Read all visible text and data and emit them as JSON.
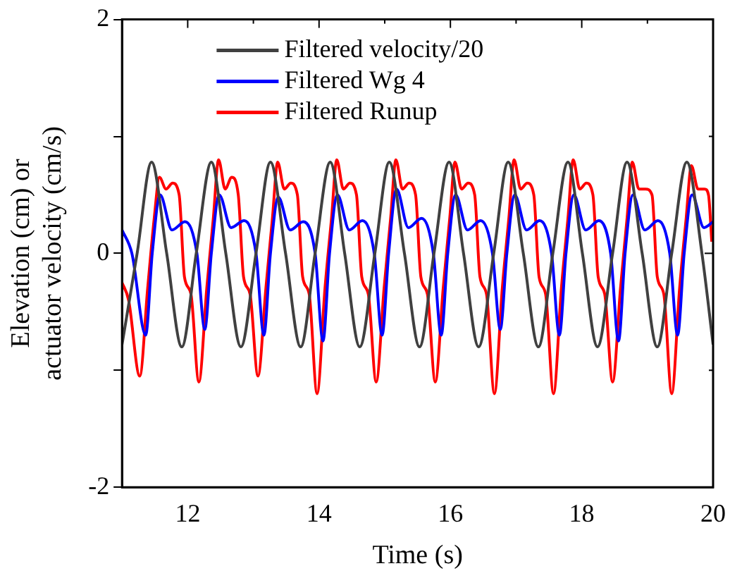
{
  "chart_data": {
    "type": "line",
    "xlabel": "Time (s)",
    "ylabel": "Elevation (cm) or\nactuator velocity (cm/s)",
    "xlim": [
      11,
      20
    ],
    "xticks": [
      {
        "value": 11,
        "label": null
      },
      12,
      {
        "value": 13,
        "label": null
      },
      14,
      {
        "value": 15,
        "label": null
      },
      16,
      {
        "value": 17,
        "label": null
      },
      18,
      {
        "value": 19,
        "label": null
      },
      20
    ],
    "ylim": [
      -2,
      2
    ],
    "yticks": [
      -2,
      {
        "value": -1,
        "label": null
      },
      0,
      {
        "value": 1,
        "label": null
      },
      2
    ],
    "grid": false,
    "legend": "top",
    "marker": "none",
    "line_style": "solid",
    "series": [
      {
        "name": "Filtered velocity/20",
        "color": "#404040",
        "x": [
          11.0,
          11.23,
          11.45,
          11.68,
          11.91,
          12.13,
          12.36,
          12.58,
          12.81,
          13.04,
          13.26,
          13.49,
          13.72,
          13.94,
          14.17,
          14.39,
          14.62,
          14.85,
          15.07,
          15.3,
          15.53,
          15.75,
          15.98,
          16.2,
          16.43,
          16.66,
          16.88,
          17.11,
          17.34,
          17.56,
          17.79,
          18.01,
          18.24,
          18.47,
          18.69,
          18.92,
          19.15,
          19.37,
          19.6,
          19.83,
          20.0
        ],
        "values": [
          -0.78,
          0,
          0.78,
          0,
          -0.8,
          0,
          0.78,
          0,
          -0.8,
          0,
          0.78,
          0,
          -0.8,
          0,
          0.78,
          0,
          -0.8,
          0,
          0.78,
          0,
          -0.8,
          0,
          0.78,
          0,
          -0.8,
          0,
          0.78,
          0,
          -0.8,
          0,
          0.78,
          0,
          -0.8,
          0,
          0.78,
          0,
          -0.8,
          0,
          0.78,
          0,
          -0.78
        ]
      },
      {
        "name": "Filtered Wg 4",
        "color": "#0000ff",
        "x": [
          11.0,
          11.15,
          11.36,
          11.46,
          11.58,
          11.76,
          11.96,
          12.14,
          12.26,
          12.36,
          12.48,
          12.66,
          12.86,
          13.04,
          13.16,
          13.26,
          13.38,
          13.56,
          13.76,
          13.94,
          14.06,
          14.16,
          14.28,
          14.46,
          14.66,
          14.84,
          14.96,
          15.06,
          15.18,
          15.36,
          15.56,
          15.74,
          15.86,
          15.96,
          16.08,
          16.26,
          16.46,
          16.64,
          16.76,
          16.86,
          16.98,
          17.16,
          17.36,
          17.54,
          17.66,
          17.76,
          17.88,
          18.06,
          18.26,
          18.44,
          18.56,
          18.66,
          18.78,
          18.96,
          19.16,
          19.34,
          19.46,
          19.56,
          19.68,
          19.86,
          20.0
        ],
        "values": [
          0.2,
          0,
          -0.7,
          0,
          0.5,
          0.2,
          0.27,
          0,
          -0.65,
          0,
          0.5,
          0.22,
          0.28,
          0,
          -0.7,
          0,
          0.48,
          0.2,
          0.27,
          0,
          -0.75,
          0,
          0.5,
          0.2,
          0.28,
          0,
          -0.7,
          0,
          0.55,
          0.22,
          0.3,
          0,
          -0.7,
          0,
          0.5,
          0.2,
          0.28,
          0,
          -0.65,
          0,
          0.5,
          0.2,
          0.28,
          0,
          -0.7,
          0,
          0.5,
          0.2,
          0.28,
          0,
          -0.75,
          0,
          0.5,
          0.2,
          0.28,
          0,
          -0.7,
          0,
          0.5,
          0.22,
          0.27
        ]
      },
      {
        "name": "Filtered Runup",
        "color": "#ff0000",
        "x": [
          11.0,
          11.1,
          11.27,
          11.39,
          11.49,
          11.57,
          11.67,
          11.77,
          11.87,
          11.95,
          12.05,
          12.17,
          12.29,
          12.39,
          12.47,
          12.57,
          12.67,
          12.77,
          12.85,
          12.95,
          13.07,
          13.19,
          13.29,
          13.37,
          13.47,
          13.57,
          13.67,
          13.75,
          13.85,
          13.97,
          14.09,
          14.19,
          14.27,
          14.37,
          14.47,
          14.57,
          14.65,
          14.75,
          14.87,
          14.99,
          15.09,
          15.17,
          15.27,
          15.37,
          15.47,
          15.55,
          15.65,
          15.77,
          15.89,
          15.99,
          16.07,
          16.17,
          16.27,
          16.37,
          16.45,
          16.55,
          16.67,
          16.79,
          16.89,
          16.97,
          17.07,
          17.17,
          17.27,
          17.35,
          17.45,
          17.57,
          17.69,
          17.79,
          17.87,
          17.97,
          18.07,
          18.17,
          18.25,
          18.35,
          18.47,
          18.59,
          18.69,
          18.77,
          18.87,
          18.97,
          19.07,
          19.15,
          19.25,
          19.37,
          19.49,
          19.59,
          19.67,
          19.77,
          19.87,
          19.93,
          19.98
        ],
        "values": [
          -0.25,
          -0.4,
          -1.05,
          -0.3,
          0.3,
          0.65,
          0.55,
          0.6,
          0.5,
          -0.2,
          -0.35,
          -1.1,
          -0.3,
          0.3,
          0.8,
          0.55,
          0.65,
          0.5,
          -0.2,
          -0.35,
          -1.05,
          -0.3,
          0.3,
          0.78,
          0.55,
          0.6,
          0.5,
          -0.2,
          -0.35,
          -1.2,
          -0.3,
          0.3,
          0.8,
          0.55,
          0.6,
          0.5,
          -0.2,
          -0.35,
          -1.1,
          -0.3,
          0.3,
          0.8,
          0.55,
          0.6,
          0.5,
          -0.2,
          -0.35,
          -1.1,
          -0.3,
          0.3,
          0.78,
          0.55,
          0.6,
          0.5,
          -0.2,
          -0.35,
          -1.2,
          -0.3,
          0.3,
          0.8,
          0.55,
          0.6,
          0.5,
          -0.2,
          -0.35,
          -1.2,
          -0.3,
          0.3,
          0.8,
          0.55,
          0.6,
          0.5,
          -0.2,
          -0.35,
          -1.1,
          -0.3,
          0.3,
          0.78,
          0.55,
          0.55,
          0.5,
          -0.2,
          -0.35,
          -1.2,
          -0.3,
          0.3,
          0.75,
          0.55,
          0.55,
          0.5,
          0.1
        ]
      }
    ]
  }
}
